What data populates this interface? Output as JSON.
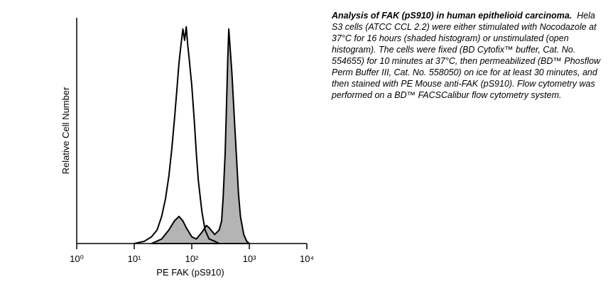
{
  "chart_data": {
    "type": "histogram-overlay",
    "ylabel": "Relative Cell Number",
    "xlabel": "PE FAK (pS910)",
    "xscale": "log",
    "xlim": [
      1,
      10000
    ],
    "xticks": [
      {
        "value": 1,
        "label": "10⁰"
      },
      {
        "value": 10,
        "label": "10¹"
      },
      {
        "value": 100,
        "label": "10²"
      },
      {
        "value": 1000,
        "label": "10³"
      },
      {
        "value": 10000,
        "label": "10⁴"
      }
    ],
    "ylim": [
      0,
      100
    ],
    "series": [
      {
        "fill": "#b4b4b4",
        "color": "#000000",
        "x": [
          20,
          30,
          40,
          50,
          60,
          70,
          80,
          100,
          120,
          150,
          180,
          200,
          250,
          300,
          330,
          350,
          380,
          400,
          420,
          440,
          460,
          500,
          550,
          600,
          650,
          700,
          800,
          900,
          1000
        ],
        "values": [
          0,
          2,
          6,
          10,
          12,
          10,
          7,
          3,
          2,
          5,
          8,
          7,
          4,
          6,
          10,
          20,
          40,
          60,
          80,
          95,
          88,
          75,
          55,
          38,
          22,
          12,
          4,
          1,
          0
        ]
      },
      {
        "fill": "none",
        "color": "#000000",
        "x": [
          10,
          15,
          20,
          25,
          30,
          35,
          40,
          45,
          50,
          55,
          60,
          65,
          70,
          75,
          80,
          85,
          90,
          100,
          110,
          120,
          130,
          150,
          170,
          200,
          250,
          300
        ],
        "values": [
          0,
          1,
          3,
          6,
          12,
          20,
          30,
          42,
          55,
          68,
          80,
          88,
          95,
          90,
          96,
          88,
          82,
          70,
          55,
          40,
          28,
          14,
          6,
          2,
          1,
          0
        ]
      }
    ],
    "caption_title": "Analysis of FAK (pS910) in human epithelioid carcinoma.",
    "caption": "Hela S3 cells (ATCC CCL 2.2) were either stimulated with Nocodazole at 37°C for 16 hours (shaded histogram) or unstimulated (open histogram).  The cells were fixed (BD Cytofix™ buffer, Cat. No. 554655) for 10 minutes at 37°C, then permeabilized (BD™ Phosflow Perm Buffer III, Cat. No. 558050) on ice for at least 30 minutes, and then stained with PE Mouse anti-FAK (pS910).  Flow cytometry was performed on a BD™ FACSCalibur flow cytometry system."
  }
}
